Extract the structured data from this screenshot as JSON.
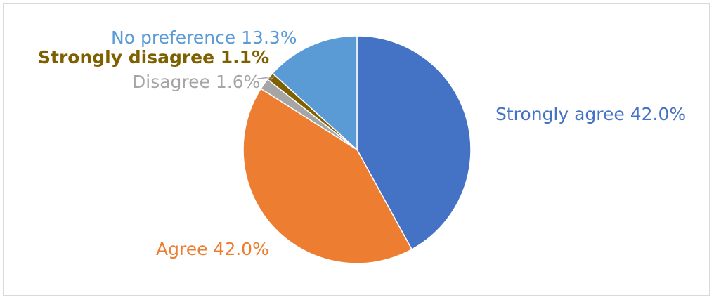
{
  "chart_data": {
    "type": "pie",
    "title": "",
    "slices": [
      {
        "label": "Strongly agree",
        "value": 42.0,
        "display": "Strongly agree 42.0%",
        "color": "#4472C4"
      },
      {
        "label": "Agree",
        "value": 42.0,
        "display": "Agree 42.0%",
        "color": "#ED7D31"
      },
      {
        "label": "Disagree",
        "value": 1.6,
        "display": "Disagree 1.6%",
        "color": "#A5A5A5"
      },
      {
        "label": "Strongly disagree",
        "value": 1.1,
        "display": "Strongly disagree 1.1%",
        "color": "#7F6000"
      },
      {
        "label": "No preference",
        "value": 13.3,
        "display": "No preference 13.3%",
        "color": "#5B9BD5"
      }
    ],
    "legend": "none"
  }
}
